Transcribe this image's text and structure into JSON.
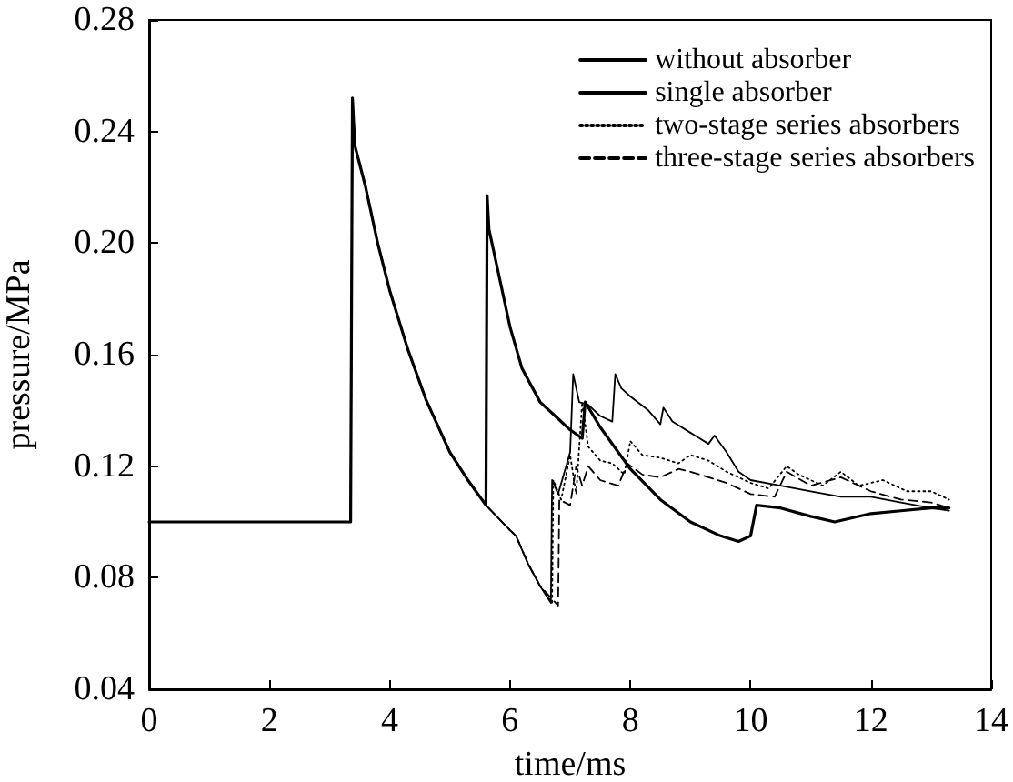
{
  "chart_data": {
    "type": "line",
    "xlabel": "time/ms",
    "ylabel": "pressure/MPa",
    "xlim": [
      0,
      14
    ],
    "xticks": [
      0,
      2,
      4,
      6,
      8,
      10,
      12,
      14
    ],
    "ylim": [
      0.04,
      0.28
    ],
    "yticks": [
      {
        "value": 0.04,
        "label": "0.04"
      },
      {
        "value": 0.08,
        "label": "0.08"
      },
      {
        "value": 0.12,
        "label": "0.12"
      },
      {
        "value": 0.16,
        "label": "0.16"
      },
      {
        "value": 0.2,
        "label": "0.20"
      },
      {
        "value": 0.24,
        "label": "0.24"
      },
      {
        "value": 0.28,
        "label": "0.28"
      }
    ],
    "grid": false,
    "legend": "top right",
    "marker": "none",
    "series": [
      {
        "name": "without absorber",
        "color": "#000000",
        "line_style": "solid",
        "x": [
          0,
          3.35,
          3.38,
          3.42,
          3.6,
          3.8,
          4.0,
          4.3,
          4.6,
          5.0,
          5.3,
          5.6,
          5.62,
          5.65,
          5.8,
          6.0,
          6.2,
          6.5,
          6.8,
          7.0,
          7.2,
          7.25,
          7.5,
          8.0,
          8.5,
          9.0,
          9.5,
          9.8,
          10.0,
          10.1,
          10.5,
          11.0,
          11.4,
          12.0,
          12.5,
          13.0,
          13.3
        ],
        "values": [
          0.1,
          0.1,
          0.252,
          0.235,
          0.22,
          0.2,
          0.183,
          0.162,
          0.144,
          0.125,
          0.115,
          0.106,
          0.217,
          0.205,
          0.19,
          0.17,
          0.155,
          0.143,
          0.137,
          0.133,
          0.13,
          0.143,
          0.134,
          0.119,
          0.108,
          0.1,
          0.095,
          0.093,
          0.095,
          0.106,
          0.105,
          0.102,
          0.1,
          0.103,
          0.104,
          0.105,
          0.105
        ]
      },
      {
        "name": "single absorber",
        "color": "#000000",
        "line_style": "solid",
        "x": [
          0,
          3.35,
          3.38,
          3.42,
          3.6,
          3.8,
          4.0,
          4.3,
          4.6,
          5.0,
          5.3,
          5.6,
          6.0,
          6.1,
          6.3,
          6.5,
          6.68,
          6.7,
          6.8,
          7.0,
          7.05,
          7.15,
          7.3,
          7.5,
          7.7,
          7.75,
          7.85,
          8.0,
          8.3,
          8.5,
          8.55,
          8.7,
          9.0,
          9.3,
          9.4,
          9.6,
          9.8,
          10.0,
          10.5,
          11.0,
          11.5,
          12.0,
          12.5,
          13.0,
          13.3
        ],
        "values": [
          0.1,
          0.1,
          0.252,
          0.235,
          0.22,
          0.2,
          0.183,
          0.162,
          0.144,
          0.125,
          0.115,
          0.106,
          0.097,
          0.095,
          0.085,
          0.077,
          0.071,
          0.115,
          0.11,
          0.125,
          0.153,
          0.143,
          0.142,
          0.138,
          0.136,
          0.153,
          0.148,
          0.145,
          0.14,
          0.135,
          0.141,
          0.136,
          0.132,
          0.128,
          0.131,
          0.125,
          0.118,
          0.115,
          0.113,
          0.111,
          0.109,
          0.109,
          0.107,
          0.105,
          0.104
        ]
      },
      {
        "name": "two-stage series absorbers",
        "color": "#000000",
        "line_style": "dotted",
        "x": [
          0,
          3.35,
          3.38,
          3.42,
          3.6,
          3.8,
          4.0,
          4.3,
          4.6,
          5.0,
          5.3,
          5.6,
          6.0,
          6.1,
          6.3,
          6.5,
          6.7,
          6.72,
          6.85,
          7.0,
          7.1,
          7.2,
          7.3,
          7.5,
          7.7,
          7.9,
          8.0,
          8.2,
          8.5,
          8.8,
          9.0,
          9.3,
          9.6,
          10.0,
          10.3,
          10.6,
          10.8,
          11.2,
          11.5,
          11.8,
          12.2,
          12.6,
          13.0,
          13.3
        ],
        "values": [
          0.1,
          0.1,
          0.252,
          0.235,
          0.22,
          0.2,
          0.183,
          0.162,
          0.144,
          0.125,
          0.115,
          0.106,
          0.097,
          0.095,
          0.085,
          0.077,
          0.071,
          0.115,
          0.108,
          0.124,
          0.11,
          0.143,
          0.127,
          0.122,
          0.121,
          0.117,
          0.129,
          0.124,
          0.123,
          0.121,
          0.124,
          0.122,
          0.118,
          0.114,
          0.112,
          0.12,
          0.117,
          0.113,
          0.118,
          0.113,
          0.115,
          0.111,
          0.111,
          0.108
        ]
      },
      {
        "name": "three-stage series absorbers",
        "color": "#000000",
        "line_style": "dashed",
        "x": [
          0,
          3.35,
          3.38,
          3.42,
          3.6,
          3.8,
          4.0,
          4.3,
          4.6,
          5.0,
          5.3,
          5.6,
          6.0,
          6.1,
          6.3,
          6.5,
          6.8,
          6.82,
          7.0,
          7.1,
          7.2,
          7.3,
          7.5,
          7.8,
          7.95,
          8.2,
          8.5,
          8.8,
          9.0,
          9.3,
          9.6,
          10.0,
          10.4,
          10.6,
          11.0,
          11.5,
          12.0,
          12.5,
          13.0,
          13.3
        ],
        "values": [
          0.1,
          0.1,
          0.252,
          0.235,
          0.22,
          0.2,
          0.183,
          0.162,
          0.144,
          0.125,
          0.115,
          0.106,
          0.097,
          0.095,
          0.085,
          0.077,
          0.07,
          0.108,
          0.106,
          0.12,
          0.113,
          0.12,
          0.115,
          0.113,
          0.121,
          0.117,
          0.116,
          0.119,
          0.118,
          0.116,
          0.114,
          0.11,
          0.109,
          0.118,
          0.113,
          0.116,
          0.111,
          0.108,
          0.107,
          0.105
        ]
      }
    ]
  }
}
